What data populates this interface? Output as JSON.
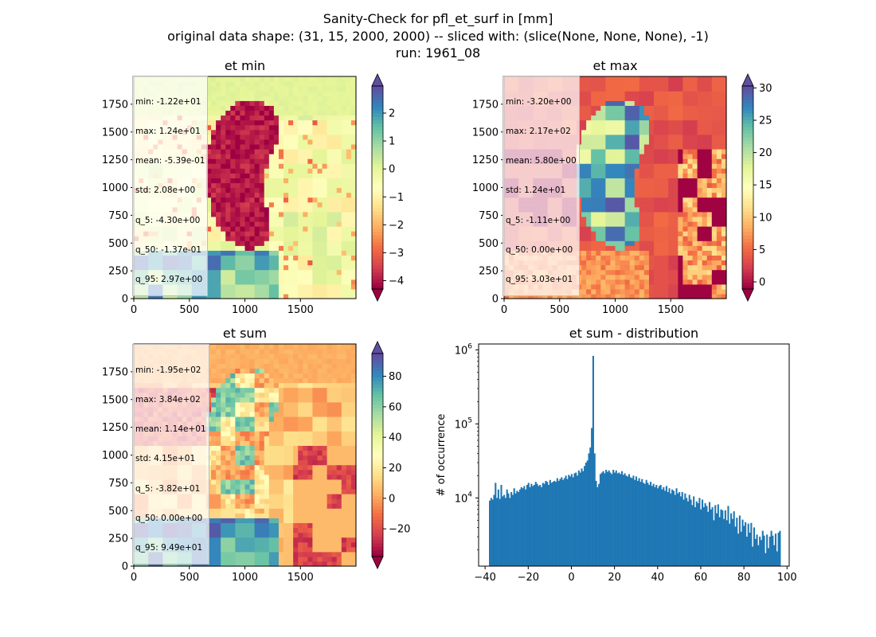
{
  "figure": {
    "title_line1": "Sanity-Check for pfl_et_surf in [mm]",
    "title_line2": "original data shape: (31, 15, 2000, 2000) -- sliced with: (slice(None, None, None), -1)",
    "title_line3": "run: 1961_08"
  },
  "colormap": {
    "name": "Spectral",
    "stops": [
      "#9e0142",
      "#d53e4f",
      "#f46d43",
      "#fdae61",
      "#fee08b",
      "#ffffbf",
      "#e6f598",
      "#abdda4",
      "#66c2a5",
      "#3288bd",
      "#5e4fa2"
    ]
  },
  "panels": [
    {
      "id": "et_min",
      "title": "et min",
      "stats": [
        "min: -1.22e+01",
        "max: 1.24e+01",
        "mean: -5.39e-01",
        "std: 2.08e+00",
        "q_5: -4.30e+00",
        "q_50: -1.37e-01",
        "q_95: 2.97e+00"
      ],
      "vmin": -4.3,
      "vmax": 2.97,
      "cbar_ticks": [
        -4,
        -3,
        -2,
        -1,
        0,
        1,
        2
      ],
      "cbar_labels": [
        "−4",
        "−3",
        "−2",
        "−1",
        "0",
        "1",
        "2"
      ]
    },
    {
      "id": "et_max",
      "title": "et max",
      "stats": [
        "min: -3.20e+00",
        "max: 2.17e+02",
        "mean: 5.80e+00",
        "std: 1.24e+01",
        "q_5: -1.11e+00",
        "q_50: 0.00e+00",
        "q_95: 3.03e+01"
      ],
      "vmin": -1.11,
      "vmax": 30.3,
      "cbar_ticks": [
        0,
        5,
        10,
        15,
        20,
        25,
        30
      ],
      "cbar_labels": [
        "0",
        "5",
        "10",
        "15",
        "20",
        "25",
        "30"
      ]
    },
    {
      "id": "et_sum",
      "title": "et sum",
      "stats": [
        "min: -1.95e+02",
        "max: 3.84e+02",
        "mean: 1.14e+01",
        "std: 4.15e+01",
        "q_5: -3.82e+01",
        "q_50: 0.00e+00",
        "q_95: 9.49e+01"
      ],
      "vmin": -38.2,
      "vmax": 94.9,
      "cbar_ticks": [
        -20,
        0,
        20,
        40,
        60,
        80
      ],
      "cbar_labels": [
        "−20",
        "0",
        "20",
        "40",
        "60",
        "80"
      ]
    }
  ],
  "map_axes": {
    "x_ticks": [
      0,
      500,
      1000,
      1500
    ],
    "x_labels": [
      "0",
      "500",
      "1000",
      "1500"
    ],
    "y_ticks": [
      0,
      250,
      500,
      750,
      1000,
      1250,
      1500,
      1750
    ],
    "y_labels": [
      "0",
      "250",
      "500",
      "750",
      "1000",
      "1250",
      "1500",
      "1750"
    ],
    "xlim": [
      0,
      2000
    ],
    "ylim": [
      0,
      2000
    ]
  },
  "chart_data": {
    "type": "bar",
    "title": "et sum - distribution",
    "xlabel": "",
    "ylabel": "# of occurrence",
    "y_scale": "log",
    "ylim": [
      1200,
      1200000
    ],
    "xlim": [
      -43,
      101
    ],
    "bar_color": "#1f77b4",
    "x_ticks": [
      -40,
      -20,
      0,
      20,
      40,
      60,
      80,
      100
    ],
    "x_tick_labels": [
      "−40",
      "−20",
      "0",
      "20",
      "40",
      "60",
      "80",
      "100"
    ],
    "y_ticks": [
      10000,
      100000,
      1000000
    ],
    "y_tick_labels": [
      "10",
      "10",
      "10"
    ],
    "y_tick_exponents": [
      "4",
      "5",
      "6"
    ],
    "bin_width": 0.666,
    "x_start": -38.2,
    "values": [
      9200,
      10000,
      9500,
      11000,
      16000,
      10000,
      13000,
      9700,
      15000,
      10500,
      11000,
      10000,
      13000,
      11500,
      10000,
      12000,
      11000,
      13500,
      11500,
      12500,
      12000,
      13000,
      14000,
      13500,
      14500,
      13000,
      15000,
      16000,
      14000,
      15500,
      14500,
      15000,
      16500,
      15500,
      14500,
      15000,
      14000,
      16000,
      15500,
      17000,
      16500,
      15000,
      17500,
      16000,
      16500,
      17000,
      16500,
      18500,
      17000,
      18000,
      19000,
      17500,
      18500,
      20000,
      18000,
      20500,
      19500,
      21000,
      19000,
      21500,
      22000,
      20000,
      23500,
      22000,
      25000,
      23000,
      27000,
      30000,
      32000,
      40000,
      48000,
      88000,
      830000,
      40000,
      17000,
      14000,
      15500,
      21000,
      22000,
      23000,
      21500,
      24000,
      22500,
      23500,
      22000,
      21000,
      24000,
      22000,
      23500,
      21500,
      22000,
      21000,
      23000,
      20500,
      21500,
      20000,
      19500,
      21000,
      19000,
      18500,
      20000,
      17500,
      19500,
      17000,
      18500,
      16500,
      18000,
      16000,
      15500,
      17500,
      16000,
      15000,
      16500,
      14500,
      15500,
      14000,
      15000,
      13500,
      14500,
      15000,
      13000,
      14000,
      12500,
      14500,
      12000,
      13500,
      11500,
      13000,
      12500,
      11000,
      13500,
      11500,
      12000,
      10500,
      12000,
      9500,
      11500,
      10000,
      9000,
      11000,
      9500,
      8000,
      10500,
      7500,
      9000,
      8500,
      10000,
      7000,
      9500,
      7500,
      8500,
      7800,
      6500,
      8800,
      7000,
      7500,
      5000,
      8000,
      6200,
      8200,
      5500,
      7000,
      6800,
      5200,
      6800,
      5000,
      7800,
      4500,
      6200,
      5200,
      6600,
      4100,
      5400,
      3300,
      5800,
      3500,
      5100,
      4200,
      4700,
      3000,
      4500,
      3400,
      4600,
      2200,
      4000,
      2800,
      3200,
      2300,
      3000,
      2700,
      3600,
      3100,
      1800,
      3200,
      2100,
      3000,
      3600,
      3100,
      2300,
      3300,
      1900,
      3400,
      3600
    ]
  }
}
